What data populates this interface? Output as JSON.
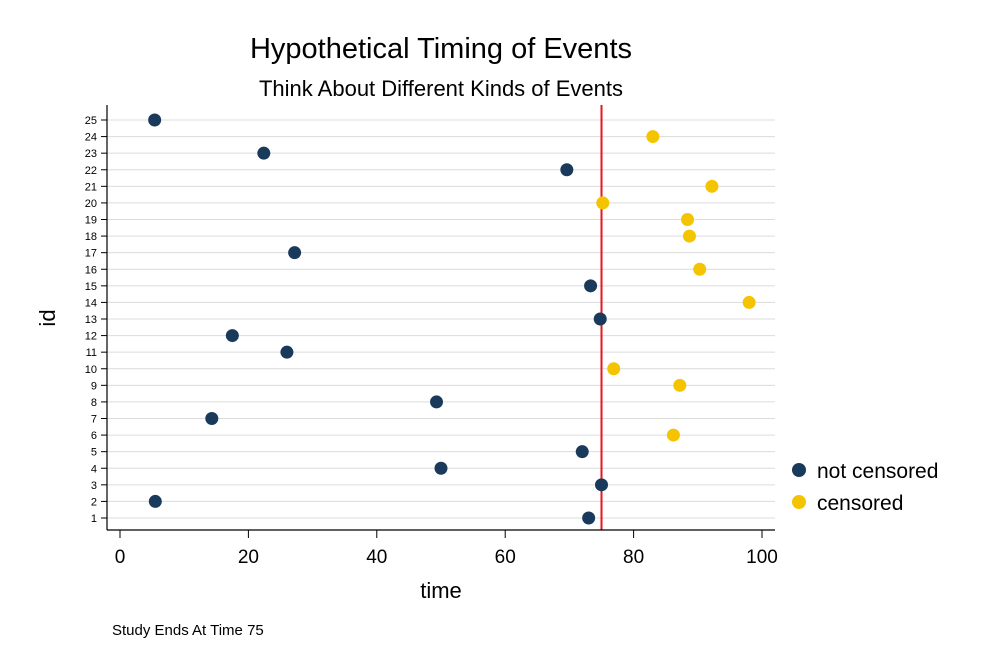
{
  "chart_data": {
    "type": "scatter",
    "title": "Hypothetical Timing of Events",
    "subtitle": "Think About Different Kinds of Events",
    "xlabel": "time",
    "ylabel": "id",
    "note": "Study Ends At Time 75",
    "xlim": [
      -2,
      102
    ],
    "ylim": [
      0.2,
      25.8
    ],
    "xticks": [
      0,
      20,
      40,
      60,
      80,
      100
    ],
    "yticks": [
      1,
      2,
      3,
      4,
      5,
      6,
      7,
      8,
      9,
      10,
      11,
      12,
      13,
      14,
      15,
      16,
      17,
      18,
      19,
      20,
      21,
      22,
      23,
      24,
      25
    ],
    "grid": "horizontal",
    "legend_position": "right",
    "reference_line": {
      "x": 75,
      "color": "#e8151b"
    },
    "series": [
      {
        "name": "not censored",
        "color": "#1a3a5c",
        "points": [
          {
            "x": 73,
            "y": 1
          },
          {
            "x": 5.5,
            "y": 2
          },
          {
            "x": 75,
            "y": 3
          },
          {
            "x": 50,
            "y": 4
          },
          {
            "x": 72,
            "y": 5
          },
          {
            "x": 14.3,
            "y": 7
          },
          {
            "x": 49.3,
            "y": 8
          },
          {
            "x": 26,
            "y": 11
          },
          {
            "x": 17.5,
            "y": 12
          },
          {
            "x": 74.8,
            "y": 13
          },
          {
            "x": 73.3,
            "y": 15
          },
          {
            "x": 27.2,
            "y": 17
          },
          {
            "x": 69.6,
            "y": 22
          },
          {
            "x": 22.4,
            "y": 23
          },
          {
            "x": 5.4,
            "y": 25
          }
        ]
      },
      {
        "name": "censored",
        "color": "#f5c400",
        "points": [
          {
            "x": 86.2,
            "y": 6
          },
          {
            "x": 87.2,
            "y": 9
          },
          {
            "x": 76.9,
            "y": 10
          },
          {
            "x": 98,
            "y": 14
          },
          {
            "x": 90.3,
            "y": 16
          },
          {
            "x": 88.7,
            "y": 18
          },
          {
            "x": 88.4,
            "y": 19
          },
          {
            "x": 75.2,
            "y": 20
          },
          {
            "x": 92.2,
            "y": 21
          },
          {
            "x": 83,
            "y": 24
          }
        ]
      }
    ]
  }
}
